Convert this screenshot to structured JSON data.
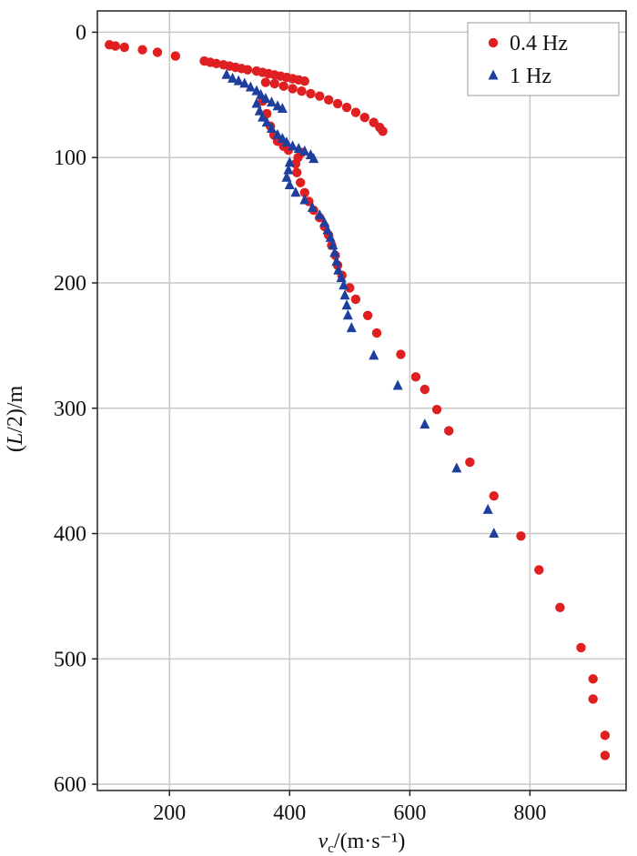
{
  "chart_data": {
    "type": "scatter",
    "title": "",
    "xlabel": "v_c/(m·s⁻¹)",
    "ylabel": "(L/2)/m",
    "xlim": [
      80,
      960
    ],
    "ylim": [
      605,
      -17
    ],
    "y_inverted": true,
    "x_ticks": [
      200,
      400,
      600,
      800
    ],
    "y_ticks": [
      0,
      100,
      200,
      300,
      400,
      500,
      600
    ],
    "grid": true,
    "legend_position": "top-right",
    "series": [
      {
        "name": "0.4 Hz",
        "marker": "circle",
        "color": "#e02020",
        "points": [
          [
            100,
            10
          ],
          [
            110,
            11
          ],
          [
            125,
            12
          ],
          [
            155,
            14
          ],
          [
            180,
            16
          ],
          [
            210,
            19
          ],
          [
            258,
            23
          ],
          [
            268,
            24
          ],
          [
            278,
            25
          ],
          [
            290,
            26
          ],
          [
            300,
            27
          ],
          [
            310,
            28
          ],
          [
            320,
            29
          ],
          [
            330,
            30
          ],
          [
            345,
            31
          ],
          [
            355,
            32
          ],
          [
            365,
            33
          ],
          [
            375,
            34
          ],
          [
            385,
            35
          ],
          [
            395,
            36
          ],
          [
            405,
            37
          ],
          [
            415,
            38
          ],
          [
            425,
            39
          ],
          [
            360,
            40
          ],
          [
            375,
            41
          ],
          [
            390,
            43
          ],
          [
            405,
            45
          ],
          [
            420,
            47
          ],
          [
            435,
            49
          ],
          [
            450,
            51
          ],
          [
            465,
            54
          ],
          [
            480,
            57
          ],
          [
            495,
            60
          ],
          [
            510,
            64
          ],
          [
            525,
            68
          ],
          [
            540,
            72
          ],
          [
            550,
            76
          ],
          [
            555,
            79
          ],
          [
            355,
            55
          ],
          [
            362,
            65
          ],
          [
            368,
            75
          ],
          [
            374,
            82
          ],
          [
            380,
            87
          ],
          [
            390,
            91
          ],
          [
            398,
            94
          ],
          [
            420,
            96
          ],
          [
            414,
            100
          ],
          [
            410,
            105
          ],
          [
            412,
            112
          ],
          [
            418,
            120
          ],
          [
            425,
            128
          ],
          [
            432,
            135
          ],
          [
            440,
            142
          ],
          [
            450,
            148
          ],
          [
            458,
            155
          ],
          [
            465,
            162
          ],
          [
            470,
            170
          ],
          [
            476,
            178
          ],
          [
            480,
            186
          ],
          [
            487,
            194
          ],
          [
            500,
            204
          ],
          [
            510,
            213
          ],
          [
            530,
            226
          ],
          [
            545,
            240
          ],
          [
            585,
            257
          ],
          [
            610,
            275
          ],
          [
            625,
            285
          ],
          [
            645,
            301
          ],
          [
            665,
            318
          ],
          [
            700,
            343
          ],
          [
            740,
            370
          ],
          [
            785,
            402
          ],
          [
            815,
            429
          ],
          [
            850,
            459
          ],
          [
            885,
            491
          ],
          [
            905,
            516
          ],
          [
            905,
            532
          ],
          [
            925,
            561
          ],
          [
            925,
            577
          ]
        ]
      },
      {
        "name": "1 Hz",
        "marker": "triangle",
        "color": "#1f3f9f",
        "points": [
          [
            295,
            34
          ],
          [
            305,
            37
          ],
          [
            315,
            39
          ],
          [
            325,
            41
          ],
          [
            335,
            44
          ],
          [
            345,
            47
          ],
          [
            352,
            50
          ],
          [
            360,
            53
          ],
          [
            370,
            56
          ],
          [
            380,
            59
          ],
          [
            388,
            61
          ],
          [
            345,
            57
          ],
          [
            350,
            63
          ],
          [
            355,
            68
          ],
          [
            362,
            72
          ],
          [
            370,
            77
          ],
          [
            380,
            82
          ],
          [
            388,
            85
          ],
          [
            395,
            88
          ],
          [
            405,
            91
          ],
          [
            415,
            93
          ],
          [
            425,
            95
          ],
          [
            435,
            98
          ],
          [
            440,
            101
          ],
          [
            400,
            104
          ],
          [
            398,
            110
          ],
          [
            395,
            116
          ],
          [
            400,
            122
          ],
          [
            410,
            128
          ],
          [
            425,
            134
          ],
          [
            438,
            140
          ],
          [
            450,
            146
          ],
          [
            458,
            152
          ],
          [
            463,
            158
          ],
          [
            468,
            164
          ],
          [
            472,
            170
          ],
          [
            475,
            176
          ],
          [
            478,
            183
          ],
          [
            481,
            190
          ],
          [
            486,
            196
          ],
          [
            490,
            202
          ],
          [
            492,
            210
          ],
          [
            495,
            218
          ],
          [
            497,
            226
          ],
          [
            503,
            236
          ],
          [
            540,
            258
          ],
          [
            580,
            282
          ],
          [
            625,
            313
          ],
          [
            678,
            348
          ],
          [
            730,
            381
          ],
          [
            740,
            400
          ]
        ]
      }
    ]
  }
}
